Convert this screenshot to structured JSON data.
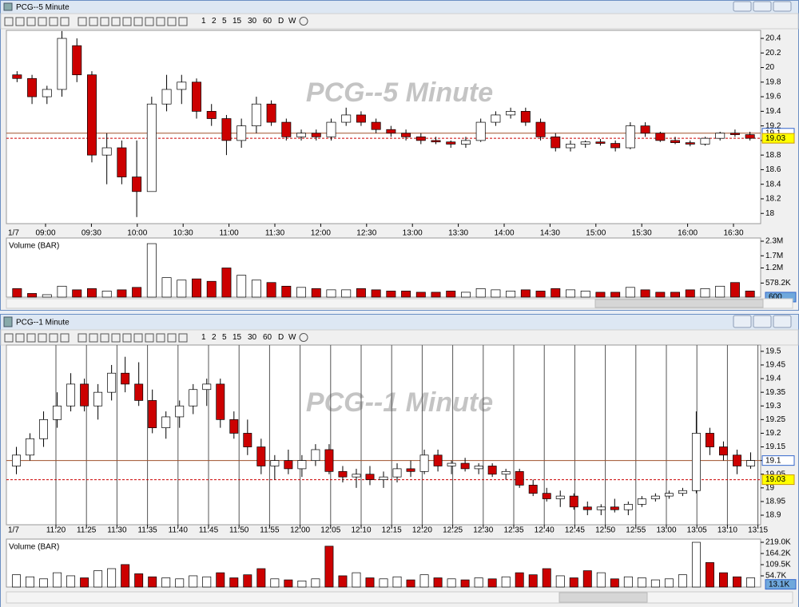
{
  "windows": [
    {
      "title": "PCG--5 Minute",
      "toolbar": [
        "1",
        "2",
        "5",
        "15",
        "30",
        "60",
        "D",
        "W"
      ],
      "chart": {
        "type": "candlestick",
        "watermark": "PCG--5 Minute",
        "date_label": "1/7",
        "vgrid": false,
        "up_color": "#ffffff",
        "down_color": "#cc0000",
        "xticks": [
          "09:00",
          "09:30",
          "10:00",
          "10:30",
          "11:00",
          "11:30",
          "12:00",
          "12:30",
          "13:00",
          "13:30",
          "14:00",
          "14:30",
          "15:00",
          "15:30",
          "16:00",
          "16:30"
        ],
        "ylim": [
          17.86,
          20.51
        ],
        "yticks": [
          20.4,
          20.2,
          20,
          19.8,
          19.6,
          19.4,
          19.2,
          19,
          18.8,
          18.6,
          18.4,
          18.2,
          18
        ],
        "price_markers": [
          19.1,
          19.03
        ],
        "candles": [
          [
            19.9,
            19.95,
            19.8,
            19.85
          ],
          [
            19.85,
            19.9,
            19.5,
            19.6
          ],
          [
            19.6,
            19.75,
            19.5,
            19.7
          ],
          [
            19.7,
            20.5,
            19.6,
            20.4
          ],
          [
            20.3,
            20.4,
            19.8,
            19.9
          ],
          [
            19.9,
            19.95,
            18.7,
            18.8
          ],
          [
            18.8,
            19.1,
            18.4,
            18.9
          ],
          [
            18.9,
            19.0,
            18.4,
            18.5
          ],
          [
            18.5,
            19.0,
            17.95,
            18.3
          ],
          [
            18.3,
            19.6,
            18.3,
            19.5
          ],
          [
            19.5,
            19.9,
            19.4,
            19.7
          ],
          [
            19.7,
            19.9,
            19.5,
            19.8
          ],
          [
            19.8,
            19.85,
            19.3,
            19.4
          ],
          [
            19.4,
            19.5,
            19.2,
            19.3
          ],
          [
            19.3,
            19.35,
            18.8,
            19.0
          ],
          [
            19.0,
            19.3,
            18.9,
            19.2
          ],
          [
            19.2,
            19.6,
            19.1,
            19.5
          ],
          [
            19.5,
            19.55,
            19.2,
            19.25
          ],
          [
            19.25,
            19.3,
            19.0,
            19.05
          ],
          [
            19.05,
            19.15,
            19.0,
            19.1
          ],
          [
            19.1,
            19.15,
            19.0,
            19.05
          ],
          [
            19.05,
            19.3,
            19.0,
            19.25
          ],
          [
            19.25,
            19.45,
            19.2,
            19.35
          ],
          [
            19.35,
            19.4,
            19.2,
            19.25
          ],
          [
            19.25,
            19.3,
            19.1,
            19.15
          ],
          [
            19.15,
            19.2,
            19.05,
            19.1
          ],
          [
            19.1,
            19.15,
            19.0,
            19.05
          ],
          [
            19.05,
            19.1,
            18.95,
            19.0
          ],
          [
            19.0,
            19.05,
            18.95,
            18.98
          ],
          [
            18.98,
            19.0,
            18.9,
            18.95
          ],
          [
            18.95,
            19.05,
            18.9,
            19.0
          ],
          [
            19.0,
            19.3,
            18.98,
            19.25
          ],
          [
            19.25,
            19.4,
            19.2,
            19.35
          ],
          [
            19.35,
            19.45,
            19.3,
            19.4
          ],
          [
            19.4,
            19.45,
            19.2,
            19.25
          ],
          [
            19.25,
            19.3,
            19.0,
            19.05
          ],
          [
            19.05,
            19.1,
            18.85,
            18.9
          ],
          [
            18.9,
            19.0,
            18.85,
            18.95
          ],
          [
            18.95,
            19.0,
            18.9,
            18.98
          ],
          [
            18.98,
            19.02,
            18.93,
            18.96
          ],
          [
            18.96,
            19.0,
            18.85,
            18.9
          ],
          [
            18.9,
            19.25,
            18.88,
            19.2
          ],
          [
            19.2,
            19.25,
            19.05,
            19.1
          ],
          [
            19.1,
            19.12,
            18.98,
            19.0
          ],
          [
            19.0,
            19.05,
            18.95,
            18.97
          ],
          [
            18.97,
            19.0,
            18.92,
            18.95
          ],
          [
            18.95,
            19.05,
            18.93,
            19.03
          ],
          [
            19.03,
            19.12,
            19.0,
            19.1
          ],
          [
            19.1,
            19.15,
            19.05,
            19.08
          ],
          [
            19.08,
            19.12,
            19.0,
            19.03
          ]
        ],
        "volume": {
          "title": "Volume (BAR)",
          "ylim": [
            0,
            2300000
          ],
          "yticks": [
            {
              "value": 2300000,
              "label": "2.3M"
            },
            {
              "value": 1700000,
              "label": "1.7M"
            },
            {
              "value": 1200000,
              "label": "1.2M"
            },
            {
              "value": 578200,
              "label": "578.2K"
            }
          ],
          "marker": 600,
          "values": [
            350000,
            150000,
            100000,
            450000,
            300000,
            350000,
            250000,
            300000,
            400000,
            2200000,
            800000,
            700000,
            750000,
            650000,
            1200000,
            900000,
            700000,
            600000,
            450000,
            400000,
            350000,
            300000,
            300000,
            350000,
            300000,
            250000,
            250000,
            200000,
            200000,
            250000,
            200000,
            350000,
            300000,
            250000,
            300000,
            250000,
            350000,
            300000,
            250000,
            200000,
            200000,
            400000,
            300000,
            200000,
            200000,
            300000,
            350000,
            450000,
            600000,
            250000
          ]
        }
      }
    },
    {
      "title": "PCG--1 Minute",
      "toolbar": [
        "1",
        "2",
        "5",
        "15",
        "30",
        "60",
        "D",
        "W"
      ],
      "chart": {
        "type": "candlestick",
        "watermark": "PCG--1 Minute",
        "date_label": "1/7",
        "vgrid": true,
        "up_color": "#ffffff",
        "down_color": "#cc0000",
        "xticks": [
          "11:20",
          "11:25",
          "11:30",
          "11:35",
          "11:40",
          "11:45",
          "11:50",
          "11:55",
          "12:00",
          "12:05",
          "12:10",
          "12:15",
          "12:20",
          "12:25",
          "12:30",
          "12:35",
          "12:40",
          "12:45",
          "12:50",
          "12:55",
          "13:00",
          "13:05",
          "13:10",
          "13:15"
        ],
        "ylim": [
          18.865,
          19.523
        ],
        "yticks": [
          19.5,
          19.45,
          19.4,
          19.35,
          19.3,
          19.25,
          19.2,
          19.15,
          19.1,
          19.05,
          19,
          18.95,
          18.9
        ],
        "price_markers": [
          19.1,
          19.03
        ],
        "candles": [
          [
            19.08,
            19.15,
            19.05,
            19.12
          ],
          [
            19.12,
            19.2,
            19.1,
            19.18
          ],
          [
            19.18,
            19.28,
            19.15,
            19.25
          ],
          [
            19.25,
            19.35,
            19.22,
            19.3
          ],
          [
            19.3,
            19.42,
            19.28,
            19.38
          ],
          [
            19.38,
            19.4,
            19.28,
            19.3
          ],
          [
            19.3,
            19.38,
            19.25,
            19.35
          ],
          [
            19.35,
            19.45,
            19.32,
            19.42
          ],
          [
            19.42,
            19.48,
            19.35,
            19.38
          ],
          [
            19.38,
            19.46,
            19.3,
            19.32
          ],
          [
            19.32,
            19.36,
            19.2,
            19.22
          ],
          [
            19.22,
            19.28,
            19.18,
            19.26
          ],
          [
            19.26,
            19.32,
            19.22,
            19.3
          ],
          [
            19.3,
            19.38,
            19.27,
            19.36
          ],
          [
            19.36,
            19.4,
            19.3,
            19.38
          ],
          [
            19.38,
            19.4,
            19.22,
            19.25
          ],
          [
            19.25,
            19.28,
            19.18,
            19.2
          ],
          [
            19.2,
            19.25,
            19.12,
            19.15
          ],
          [
            19.15,
            19.18,
            19.05,
            19.08
          ],
          [
            19.08,
            19.12,
            19.03,
            19.1
          ],
          [
            19.1,
            19.14,
            19.05,
            19.07
          ],
          [
            19.07,
            19.12,
            19.04,
            19.1
          ],
          [
            19.1,
            19.16,
            19.08,
            19.14
          ],
          [
            19.14,
            19.16,
            19.05,
            19.06
          ],
          [
            19.06,
            19.08,
            19.02,
            19.04
          ],
          [
            19.04,
            19.07,
            19.0,
            19.05
          ],
          [
            19.05,
            19.08,
            19.01,
            19.03
          ],
          [
            19.03,
            19.06,
            19.0,
            19.04
          ],
          [
            19.04,
            19.09,
            19.02,
            19.07
          ],
          [
            19.07,
            19.1,
            19.04,
            19.06
          ],
          [
            19.06,
            19.14,
            19.05,
            19.12
          ],
          [
            19.12,
            19.14,
            19.06,
            19.08
          ],
          [
            19.08,
            19.1,
            19.05,
            19.09
          ],
          [
            19.09,
            19.11,
            19.06,
            19.07
          ],
          [
            19.07,
            19.09,
            19.05,
            19.08
          ],
          [
            19.08,
            19.09,
            19.04,
            19.05
          ],
          [
            19.05,
            19.07,
            19.03,
            19.06
          ],
          [
            19.06,
            19.07,
            19.0,
            19.01
          ],
          [
            19.01,
            19.03,
            18.97,
            18.98
          ],
          [
            18.98,
            19.0,
            18.95,
            18.96
          ],
          [
            18.96,
            18.99,
            18.93,
            18.97
          ],
          [
            18.97,
            18.98,
            18.92,
            18.93
          ],
          [
            18.93,
            18.95,
            18.9,
            18.92
          ],
          [
            18.92,
            18.94,
            18.9,
            18.93
          ],
          [
            18.93,
            18.96,
            18.91,
            18.92
          ],
          [
            18.92,
            18.95,
            18.9,
            18.94
          ],
          [
            18.94,
            18.97,
            18.93,
            18.96
          ],
          [
            18.96,
            18.98,
            18.95,
            18.97
          ],
          [
            18.97,
            18.99,
            18.96,
            18.98
          ],
          [
            18.98,
            19.0,
            18.97,
            18.99
          ],
          [
            18.99,
            19.28,
            18.98,
            19.2
          ],
          [
            19.2,
            19.22,
            19.12,
            19.15
          ],
          [
            19.15,
            19.17,
            19.1,
            19.12
          ],
          [
            19.12,
            19.14,
            19.05,
            19.08
          ],
          [
            19.08,
            19.13,
            19.07,
            19.1
          ]
        ],
        "volume": {
          "title": "Volume (BAR)",
          "ylim": [
            0,
            219000
          ],
          "yticks": [
            {
              "value": 219000,
              "label": "219.0K"
            },
            {
              "value": 164200,
              "label": "164.2K"
            },
            {
              "value": 109500,
              "label": "109.5K"
            },
            {
              "value": 54700,
              "label": "54.7K"
            }
          ],
          "marker": {
            "value": 13100,
            "label": "13.1K"
          },
          "values": [
            60000,
            50000,
            40000,
            70000,
            55000,
            45000,
            80000,
            90000,
            110000,
            65000,
            50000,
            45000,
            40000,
            55000,
            50000,
            70000,
            45000,
            60000,
            90000,
            40000,
            35000,
            30000,
            40000,
            200000,
            55000,
            70000,
            45000,
            40000,
            50000,
            35000,
            60000,
            45000,
            40000,
            35000,
            45000,
            40000,
            50000,
            70000,
            60000,
            90000,
            55000,
            45000,
            80000,
            70000,
            40000,
            50000,
            45000,
            35000,
            40000,
            60000,
            219000,
            120000,
            70000,
            50000,
            45000
          ]
        }
      }
    }
  ]
}
